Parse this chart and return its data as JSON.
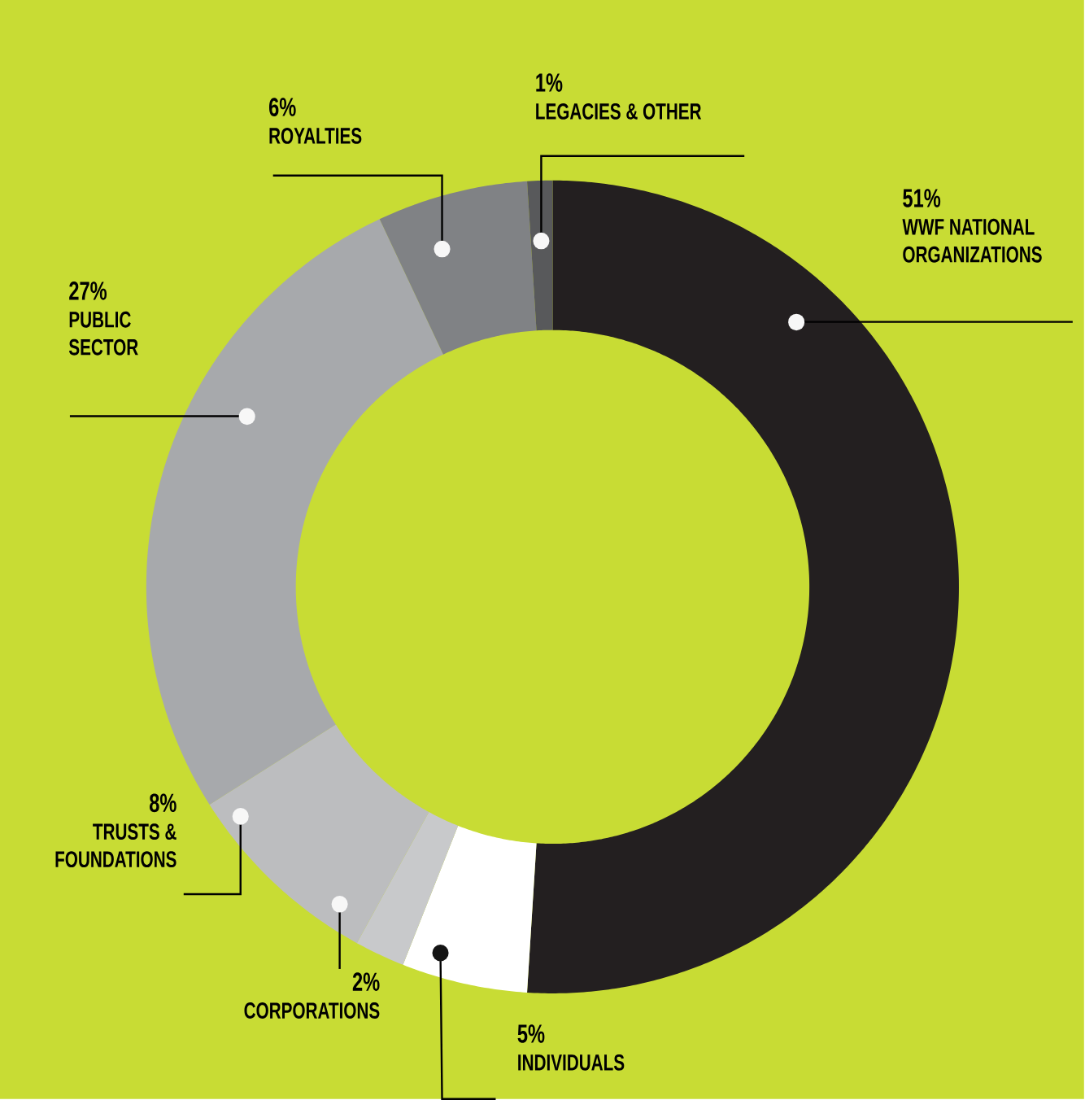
{
  "chart_data": {
    "type": "donut",
    "categories": [
      "WWF NATIONAL ORGANIZATIONS",
      "INDIVIDUALS",
      "CORPORATIONS",
      "TRUSTS & FOUNDATIONS",
      "PUBLIC SECTOR",
      "ROYALTIES",
      "LEGACIES & OTHER"
    ],
    "values": [
      51,
      5,
      2,
      8,
      27,
      6,
      1
    ],
    "value_labels": [
      "51%",
      "5%",
      "2%",
      "8%",
      "27%",
      "6%",
      "1%"
    ],
    "colors": [
      "#231f20",
      "#ffffff",
      "#c8c9cb",
      "#bcbdbf",
      "#a7a9ac",
      "#808285",
      "#58595b"
    ],
    "legend": false
  }
}
